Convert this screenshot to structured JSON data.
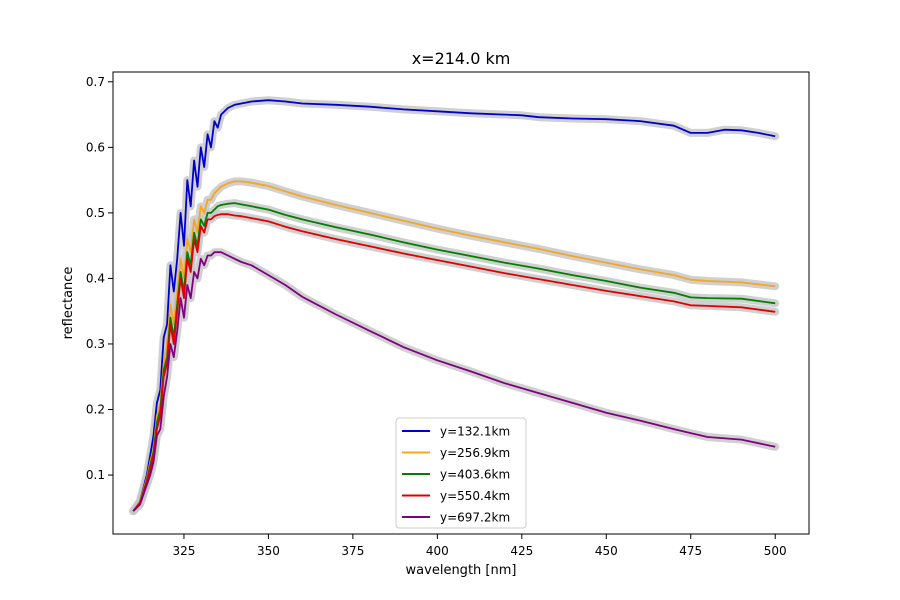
{
  "chart_data": {
    "type": "line",
    "title": "x=214.0 km",
    "xlabel": "wavelength [nm]",
    "ylabel": "reflectance",
    "xlim": [
      304,
      510
    ],
    "ylim": [
      0.01,
      0.715
    ],
    "xticks": [
      325,
      350,
      375,
      400,
      425,
      450,
      475,
      500
    ],
    "xtick_labels": [
      "325",
      "350",
      "375",
      "400",
      "425",
      "450",
      "475",
      "500"
    ],
    "yticks": [
      0.1,
      0.2,
      0.3,
      0.4,
      0.5,
      0.6,
      0.7
    ],
    "ytick_labels": [
      "0.1",
      "0.2",
      "0.3",
      "0.4",
      "0.5",
      "0.6",
      "0.7"
    ],
    "grid": false,
    "legend_position": "lower-center",
    "uncertainty_band_color": "#c8c8c8",
    "series": [
      {
        "name": "y=132.1km",
        "color": "#0000cc",
        "points": [
          [
            310,
            0.045
          ],
          [
            312,
            0.06
          ],
          [
            314,
            0.1
          ],
          [
            315,
            0.13
          ],
          [
            316,
            0.16
          ],
          [
            317,
            0.21
          ],
          [
            318,
            0.23
          ],
          [
            319,
            0.31
          ],
          [
            320,
            0.33
          ],
          [
            321,
            0.42
          ],
          [
            322,
            0.38
          ],
          [
            323,
            0.43
          ],
          [
            324,
            0.5
          ],
          [
            325,
            0.45
          ],
          [
            326,
            0.55
          ],
          [
            327,
            0.51
          ],
          [
            328,
            0.58
          ],
          [
            329,
            0.54
          ],
          [
            330,
            0.6
          ],
          [
            331,
            0.57
          ],
          [
            332,
            0.62
          ],
          [
            333,
            0.6
          ],
          [
            334,
            0.64
          ],
          [
            335,
            0.63
          ],
          [
            336,
            0.65
          ],
          [
            338,
            0.66
          ],
          [
            340,
            0.665
          ],
          [
            342,
            0.667
          ],
          [
            345,
            0.67
          ],
          [
            350,
            0.672
          ],
          [
            355,
            0.67
          ],
          [
            360,
            0.667
          ],
          [
            370,
            0.665
          ],
          [
            380,
            0.662
          ],
          [
            390,
            0.658
          ],
          [
            400,
            0.655
          ],
          [
            410,
            0.652
          ],
          [
            420,
            0.65
          ],
          [
            425,
            0.649
          ],
          [
            430,
            0.646
          ],
          [
            440,
            0.644
          ],
          [
            450,
            0.643
          ],
          [
            460,
            0.64
          ],
          [
            470,
            0.633
          ],
          [
            475,
            0.622
          ],
          [
            480,
            0.622
          ],
          [
            485,
            0.627
          ],
          [
            490,
            0.626
          ],
          [
            495,
            0.622
          ],
          [
            500,
            0.617
          ]
        ]
      },
      {
        "name": "y=256.9km",
        "color": "#f5a623",
        "points": [
          [
            310,
            0.045
          ],
          [
            312,
            0.06
          ],
          [
            314,
            0.095
          ],
          [
            315,
            0.12
          ],
          [
            316,
            0.14
          ],
          [
            317,
            0.19
          ],
          [
            318,
            0.21
          ],
          [
            319,
            0.27
          ],
          [
            320,
            0.3
          ],
          [
            321,
            0.36
          ],
          [
            322,
            0.33
          ],
          [
            323,
            0.38
          ],
          [
            324,
            0.43
          ],
          [
            325,
            0.4
          ],
          [
            326,
            0.46
          ],
          [
            327,
            0.44
          ],
          [
            328,
            0.49
          ],
          [
            329,
            0.47
          ],
          [
            330,
            0.51
          ],
          [
            331,
            0.5
          ],
          [
            332,
            0.52
          ],
          [
            333,
            0.52
          ],
          [
            334,
            0.53
          ],
          [
            335,
            0.535
          ],
          [
            336,
            0.54
          ],
          [
            338,
            0.545
          ],
          [
            340,
            0.548
          ],
          [
            342,
            0.548
          ],
          [
            345,
            0.546
          ],
          [
            350,
            0.541
          ],
          [
            355,
            0.533
          ],
          [
            360,
            0.525
          ],
          [
            370,
            0.512
          ],
          [
            380,
            0.5
          ],
          [
            390,
            0.488
          ],
          [
            400,
            0.476
          ],
          [
            410,
            0.465
          ],
          [
            420,
            0.455
          ],
          [
            430,
            0.445
          ],
          [
            440,
            0.434
          ],
          [
            450,
            0.424
          ],
          [
            460,
            0.414
          ],
          [
            470,
            0.405
          ],
          [
            475,
            0.398
          ],
          [
            480,
            0.396
          ],
          [
            490,
            0.394
          ],
          [
            500,
            0.388
          ]
        ]
      },
      {
        "name": "y=403.6km",
        "color": "#008000",
        "points": [
          [
            310,
            0.045
          ],
          [
            312,
            0.058
          ],
          [
            314,
            0.092
          ],
          [
            315,
            0.115
          ],
          [
            316,
            0.135
          ],
          [
            317,
            0.18
          ],
          [
            318,
            0.2
          ],
          [
            319,
            0.26
          ],
          [
            320,
            0.28
          ],
          [
            321,
            0.34
          ],
          [
            322,
            0.31
          ],
          [
            323,
            0.36
          ],
          [
            324,
            0.41
          ],
          [
            325,
            0.38
          ],
          [
            326,
            0.44
          ],
          [
            327,
            0.42
          ],
          [
            328,
            0.47
          ],
          [
            329,
            0.45
          ],
          [
            330,
            0.49
          ],
          [
            331,
            0.48
          ],
          [
            332,
            0.5
          ],
          [
            333,
            0.5
          ],
          [
            334,
            0.505
          ],
          [
            335,
            0.51
          ],
          [
            336,
            0.512
          ],
          [
            338,
            0.514
          ],
          [
            340,
            0.515
          ],
          [
            342,
            0.513
          ],
          [
            345,
            0.51
          ],
          [
            350,
            0.505
          ],
          [
            355,
            0.497
          ],
          [
            360,
            0.49
          ],
          [
            370,
            0.478
          ],
          [
            380,
            0.467
          ],
          [
            390,
            0.455
          ],
          [
            400,
            0.444
          ],
          [
            410,
            0.434
          ],
          [
            420,
            0.424
          ],
          [
            430,
            0.415
          ],
          [
            440,
            0.405
          ],
          [
            450,
            0.396
          ],
          [
            460,
            0.386
          ],
          [
            470,
            0.378
          ],
          [
            475,
            0.371
          ],
          [
            480,
            0.37
          ],
          [
            490,
            0.369
          ],
          [
            500,
            0.362
          ]
        ]
      },
      {
        "name": "y=550.4km",
        "color": "#e00000",
        "points": [
          [
            310,
            0.045
          ],
          [
            312,
            0.057
          ],
          [
            314,
            0.09
          ],
          [
            315,
            0.11
          ],
          [
            316,
            0.13
          ],
          [
            317,
            0.17
          ],
          [
            318,
            0.19
          ],
          [
            319,
            0.25
          ],
          [
            320,
            0.27
          ],
          [
            321,
            0.33
          ],
          [
            322,
            0.3
          ],
          [
            323,
            0.35
          ],
          [
            324,
            0.4
          ],
          [
            325,
            0.37
          ],
          [
            326,
            0.43
          ],
          [
            327,
            0.41
          ],
          [
            328,
            0.46
          ],
          [
            329,
            0.44
          ],
          [
            330,
            0.48
          ],
          [
            331,
            0.47
          ],
          [
            332,
            0.49
          ],
          [
            333,
            0.49
          ],
          [
            334,
            0.495
          ],
          [
            335,
            0.497
          ],
          [
            336,
            0.498
          ],
          [
            338,
            0.498
          ],
          [
            340,
            0.496
          ],
          [
            342,
            0.495
          ],
          [
            345,
            0.492
          ],
          [
            350,
            0.487
          ],
          [
            355,
            0.479
          ],
          [
            360,
            0.472
          ],
          [
            370,
            0.46
          ],
          [
            380,
            0.449
          ],
          [
            390,
            0.438
          ],
          [
            400,
            0.428
          ],
          [
            410,
            0.418
          ],
          [
            420,
            0.408
          ],
          [
            430,
            0.399
          ],
          [
            440,
            0.39
          ],
          [
            450,
            0.381
          ],
          [
            460,
            0.373
          ],
          [
            470,
            0.365
          ],
          [
            475,
            0.359
          ],
          [
            480,
            0.358
          ],
          [
            490,
            0.356
          ],
          [
            500,
            0.349
          ]
        ]
      },
      {
        "name": "y=697.2km",
        "color": "#800080",
        "points": [
          [
            310,
            0.045
          ],
          [
            312,
            0.055
          ],
          [
            314,
            0.085
          ],
          [
            315,
            0.1
          ],
          [
            316,
            0.12
          ],
          [
            317,
            0.16
          ],
          [
            318,
            0.17
          ],
          [
            319,
            0.22
          ],
          [
            320,
            0.25
          ],
          [
            321,
            0.3
          ],
          [
            322,
            0.28
          ],
          [
            323,
            0.32
          ],
          [
            324,
            0.37
          ],
          [
            325,
            0.34
          ],
          [
            326,
            0.39
          ],
          [
            327,
            0.37
          ],
          [
            328,
            0.41
          ],
          [
            329,
            0.4
          ],
          [
            330,
            0.43
          ],
          [
            331,
            0.42
          ],
          [
            332,
            0.435
          ],
          [
            333,
            0.435
          ],
          [
            334,
            0.44
          ],
          [
            335,
            0.44
          ],
          [
            336,
            0.44
          ],
          [
            338,
            0.435
          ],
          [
            340,
            0.43
          ],
          [
            342,
            0.425
          ],
          [
            345,
            0.42
          ],
          [
            350,
            0.405
          ],
          [
            355,
            0.39
          ],
          [
            360,
            0.372
          ],
          [
            370,
            0.345
          ],
          [
            380,
            0.32
          ],
          [
            390,
            0.295
          ],
          [
            400,
            0.275
          ],
          [
            410,
            0.258
          ],
          [
            420,
            0.24
          ],
          [
            430,
            0.225
          ],
          [
            440,
            0.21
          ],
          [
            450,
            0.195
          ],
          [
            460,
            0.183
          ],
          [
            470,
            0.17
          ],
          [
            475,
            0.164
          ],
          [
            480,
            0.158
          ],
          [
            490,
            0.154
          ],
          [
            500,
            0.143
          ]
        ]
      }
    ]
  }
}
